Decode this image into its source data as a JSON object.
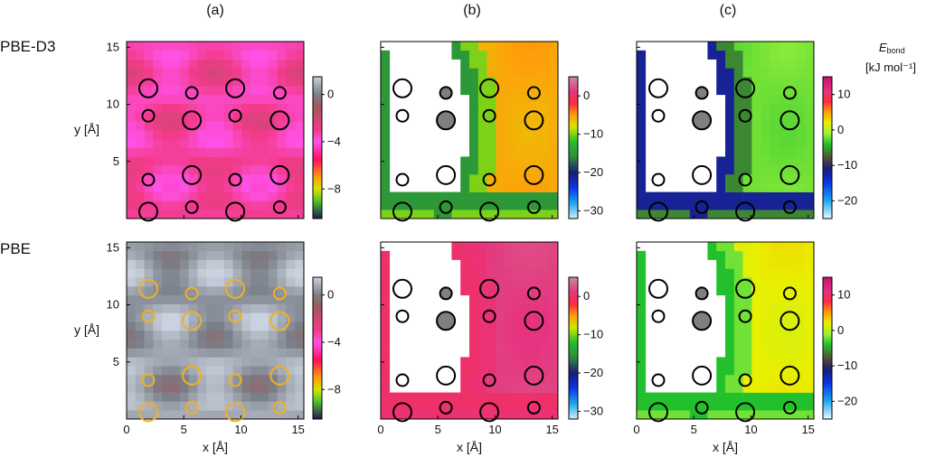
{
  "chart_data": {
    "type": "heatmap",
    "panel_labels": [
      "(a)",
      "(b)",
      "(c)"
    ],
    "row_labels": [
      "PBE-D3",
      "PBE"
    ],
    "xlabel": "x [Å]",
    "ylabel": "y [Å]",
    "xlim": [
      0,
      15.5
    ],
    "ylim": [
      0,
      15.5
    ],
    "xticks": [
      0,
      5,
      10,
      15
    ],
    "yticks": [
      5,
      10,
      15
    ],
    "colorbar_title": "E",
    "colorbar_title_sub": "bond",
    "colorbar_units": "[kJ mol⁻¹]",
    "colorbars": {
      "a": {
        "ticks": [
          0,
          -4,
          -8
        ],
        "range": [
          -10.5,
          1.5
        ],
        "stops": [
          [
            1.5,
            "#c9d2de"
          ],
          [
            0,
            "#7a7f88"
          ],
          [
            -1,
            "#a1585a"
          ],
          [
            -3,
            "#f33a8a"
          ],
          [
            -4,
            "#ff52e8"
          ],
          [
            -5.5,
            "#ff0f5e"
          ],
          [
            -7,
            "#ff9d0a"
          ],
          [
            -8,
            "#d7e400"
          ],
          [
            -9,
            "#54c42b"
          ],
          [
            -10.5,
            "#1d1a52"
          ]
        ]
      },
      "b": {
        "ticks": [
          0,
          -10,
          -20,
          -30
        ],
        "range": [
          -32,
          5
        ],
        "stops": [
          [
            5,
            "#c88f99"
          ],
          [
            1,
            "#e6337f"
          ],
          [
            -2,
            "#ff2d43"
          ],
          [
            -5,
            "#ff9d0a"
          ],
          [
            -8,
            "#d7e400"
          ],
          [
            -12,
            "#23c02d"
          ],
          [
            -16,
            "#2f8a3c"
          ],
          [
            -20,
            "#1b1b78"
          ],
          [
            -24,
            "#0a36e6"
          ],
          [
            -28,
            "#1ea7f0"
          ],
          [
            -32,
            "#cfeff7"
          ]
        ]
      },
      "c": {
        "ticks": [
          10,
          0,
          -10,
          -20
        ],
        "range": [
          -25,
          15
        ],
        "stops": [
          [
            15,
            "#c4106e"
          ],
          [
            11,
            "#e6337f"
          ],
          [
            8,
            "#ff2d43"
          ],
          [
            5,
            "#ff9d0a"
          ],
          [
            2,
            "#e9ef00"
          ],
          [
            -1,
            "#9af13b"
          ],
          [
            -4,
            "#23c02d"
          ],
          [
            -8,
            "#544d36"
          ],
          [
            -11,
            "#1b1b78"
          ],
          [
            -15,
            "#0a36e6"
          ],
          [
            -20,
            "#1ea7f0"
          ],
          [
            -25,
            "#e9fbff"
          ]
        ]
      }
    },
    "circles": [
      {
        "x": 1.9,
        "y": 11.4,
        "size": "large",
        "fill": "none"
      },
      {
        "x": 5.7,
        "y": 11.0,
        "size": "small",
        "fill": "gray"
      },
      {
        "x": 1.9,
        "y": 9.0,
        "size": "small",
        "fill": "none"
      },
      {
        "x": 5.7,
        "y": 8.6,
        "size": "large",
        "fill": "gray"
      },
      {
        "x": 9.5,
        "y": 11.4,
        "size": "large",
        "fill": "none"
      },
      {
        "x": 13.4,
        "y": 11.0,
        "size": "small",
        "fill": "none"
      },
      {
        "x": 9.5,
        "y": 9.0,
        "size": "small",
        "fill": "none"
      },
      {
        "x": 13.4,
        "y": 8.6,
        "size": "large",
        "fill": "none"
      },
      {
        "x": 1.9,
        "y": 3.4,
        "size": "small",
        "fill": "none"
      },
      {
        "x": 5.7,
        "y": 3.8,
        "size": "large",
        "fill": "none"
      },
      {
        "x": 1.9,
        "y": 0.6,
        "size": "large",
        "fill": "none"
      },
      {
        "x": 5.7,
        "y": 1.0,
        "size": "small",
        "fill": "none"
      },
      {
        "x": 9.5,
        "y": 3.4,
        "size": "small",
        "fill": "none"
      },
      {
        "x": 13.4,
        "y": 3.8,
        "size": "large",
        "fill": "none"
      },
      {
        "x": 9.5,
        "y": 0.6,
        "size": "large",
        "fill": "none"
      },
      {
        "x": 13.4,
        "y": 1.0,
        "size": "small",
        "fill": "none"
      }
    ],
    "circle_colors": {
      "d3_a": "#000000",
      "pbe_a": "#f2b01e",
      "b_c": "#000000"
    },
    "gray_fill": "#7f7f7f",
    "panels": [
      {
        "id": "d3a",
        "row": "PBE-D3",
        "col": "(a)",
        "kind": "periodic",
        "base": -3.3,
        "amp": 0.7,
        "colorbar": "a"
      },
      {
        "id": "d3b",
        "row": "PBE-D3",
        "col": "(b)",
        "kind": "field",
        "white_cutout": true,
        "colorbar": "b",
        "description_values": {
          "far": -5.5,
          "near_wall": -10,
          "wall": -15
        }
      },
      {
        "id": "d3c",
        "row": "PBE-D3",
        "col": "(c)",
        "kind": "field",
        "white_cutout": true,
        "colorbar": "c",
        "description_values": {
          "far": -2,
          "near_wall": -6,
          "wall": -12
        }
      },
      {
        "id": "pbea",
        "row": "PBE",
        "col": "(a)",
        "kind": "periodic",
        "base": 0.6,
        "amp": 0.8,
        "colorbar": "a"
      },
      {
        "id": "pbeb",
        "row": "PBE",
        "col": "(b)",
        "kind": "field",
        "white_cutout": true,
        "colorbar": "b",
        "description_values": {
          "far": 1.5,
          "near_wall": 0.5,
          "wall": 0
        }
      },
      {
        "id": "pbec",
        "row": "PBE",
        "col": "(c)",
        "kind": "field",
        "white_cutout": true,
        "colorbar": "c",
        "description_values": {
          "far": 2,
          "near_wall": -2,
          "wall": -4
        }
      }
    ]
  }
}
